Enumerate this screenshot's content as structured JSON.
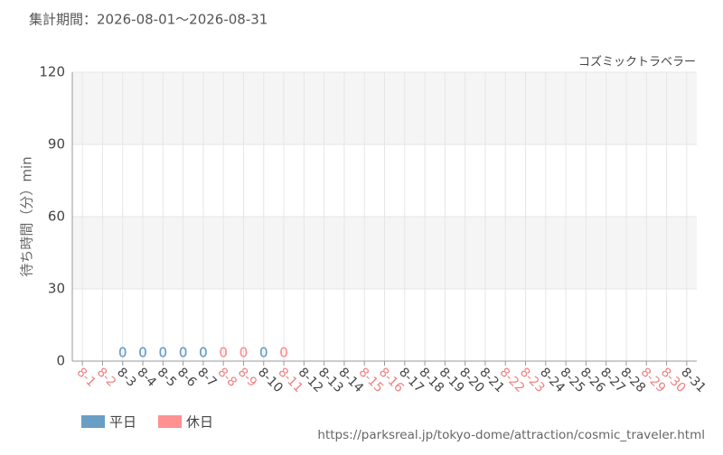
{
  "chart_data": {
    "type": "bar",
    "title": "集計期間：2026-08-01～2026-08-31",
    "subtitle": "コズミックトラベラー",
    "y_label": "待ち時間（分）min",
    "source": "https://parksreal.jp/tokyo-dome/attraction/cosmic_traveler.html",
    "categories": [
      "8-1",
      "8-2",
      "8-3",
      "8-4",
      "8-5",
      "8-6",
      "8-7",
      "8-8",
      "8-9",
      "8-10",
      "8-11",
      "8-12",
      "8-13",
      "8-14",
      "8-15",
      "8-16",
      "8-17",
      "8-18",
      "8-19",
      "8-20",
      "8-21",
      "8-22",
      "8-23",
      "8-24",
      "8-25",
      "8-26",
      "8-27",
      "8-28",
      "8-29",
      "8-30",
      "8-31"
    ],
    "category_label_colors": [
      "#f08080",
      "#f08080",
      "#444444",
      "#444444",
      "#444444",
      "#444444",
      "#444444",
      "#f08080",
      "#f08080",
      "#444444",
      "#f08080",
      "#444444",
      "#444444",
      "#444444",
      "#f08080",
      "#f08080",
      "#444444",
      "#444444",
      "#444444",
      "#444444",
      "#444444",
      "#f08080",
      "#f08080",
      "#444444",
      "#444444",
      "#444444",
      "#444444",
      "#444444",
      "#f08080",
      "#f08080",
      "#444444"
    ],
    "series": [
      {
        "name": "平日",
        "color": "#6a9ec5",
        "values": [
          null,
          null,
          0,
          0,
          0,
          0,
          0,
          null,
          null,
          0,
          null,
          null,
          null,
          null,
          null,
          null,
          null,
          null,
          null,
          null,
          null,
          null,
          null,
          null,
          null,
          null,
          null,
          null,
          null,
          null,
          null
        ]
      },
      {
        "name": "休日",
        "color": "#ff9191",
        "values": [
          null,
          null,
          null,
          null,
          null,
          null,
          null,
          0,
          0,
          null,
          0,
          null,
          null,
          null,
          null,
          null,
          null,
          null,
          null,
          null,
          null,
          null,
          null,
          null,
          null,
          null,
          null,
          null,
          null,
          null,
          null
        ]
      }
    ],
    "ylim": [
      0,
      120
    ],
    "yticks": [
      0,
      30,
      60,
      90,
      120
    ],
    "grid": true
  }
}
